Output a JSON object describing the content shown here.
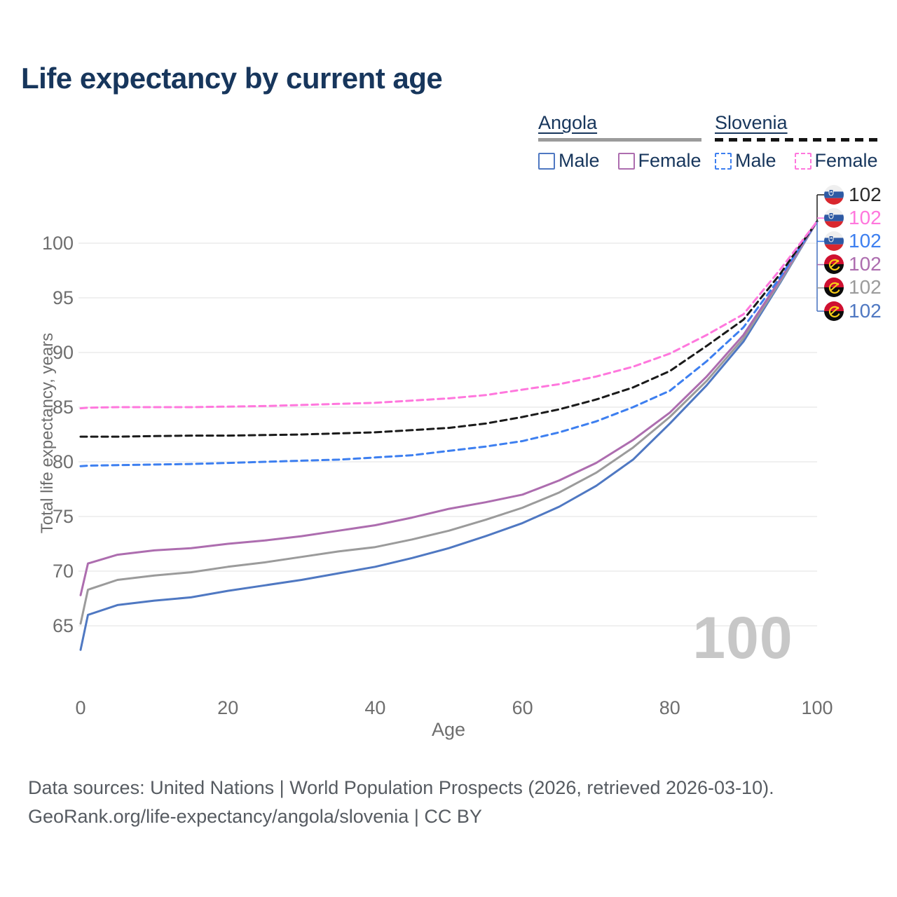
{
  "title": "Life expectancy by current age",
  "legend": {
    "groups": [
      {
        "country": "Angola",
        "line_style": "solid",
        "underline_color": "#9b9b9b",
        "items": [
          {
            "label": "Male",
            "color": "#4f78c2",
            "dashed": false
          },
          {
            "label": "Female",
            "color": "#ad6daf",
            "dashed": false
          }
        ]
      },
      {
        "country": "Slovenia",
        "line_style": "dashed",
        "underline_color": "#141414",
        "items": [
          {
            "label": "Male",
            "color": "#3d7ff0",
            "dashed": true
          },
          {
            "label": "Female",
            "color": "#ff77dd",
            "dashed": true
          }
        ]
      }
    ]
  },
  "watermark": "100",
  "end_labels": [
    {
      "flag": "slovenia",
      "value": "102",
      "color": "#2b2b2b",
      "series": "Slovenia total"
    },
    {
      "flag": "slovenia",
      "value": "102",
      "color": "#ff77dd",
      "series": "Slovenia female"
    },
    {
      "flag": "slovenia",
      "value": "102",
      "color": "#3d7ff0",
      "series": "Slovenia male"
    },
    {
      "flag": "angola",
      "value": "102",
      "color": "#ad6daf",
      "series": "Angola female"
    },
    {
      "flag": "angola",
      "value": "102",
      "color": "#9b9b9b",
      "series": "Angola total"
    },
    {
      "flag": "angola",
      "value": "102",
      "color": "#4f78c2",
      "series": "Angola male"
    }
  ],
  "footer": {
    "line1": "Data sources: United Nations | World Population Prospects (2026, retrieved 2026-03-10).",
    "line2": "GeoRank.org/life-expectancy/angola/slovenia | CC BY"
  },
  "chart_data": {
    "type": "line",
    "title": "Life expectancy by current age",
    "xlabel": "Age",
    "ylabel": "Total life expectancy, years",
    "xlim": [
      0,
      100
    ],
    "ylim": [
      62,
      103
    ],
    "x_ticks": [
      0,
      20,
      40,
      60,
      80,
      100
    ],
    "y_ticks": [
      65,
      70,
      75,
      80,
      85,
      90,
      95,
      100
    ],
    "grid": true,
    "legend_position": "top-right",
    "ages": [
      0,
      1,
      5,
      10,
      15,
      20,
      25,
      30,
      35,
      40,
      45,
      50,
      55,
      60,
      65,
      70,
      75,
      80,
      85,
      90,
      95,
      100
    ],
    "series": [
      {
        "name": "Angola male",
        "country": "Angola",
        "sex": "Male",
        "color": "#4f78c2",
        "dashed": false,
        "values": [
          62.8,
          66.0,
          66.9,
          67.3,
          67.6,
          68.2,
          68.7,
          69.2,
          69.8,
          70.4,
          71.2,
          72.1,
          73.2,
          74.4,
          75.9,
          77.8,
          80.2,
          83.5,
          87.0,
          91.0,
          96.4,
          102
        ]
      },
      {
        "name": "Angola total",
        "country": "Angola",
        "sex": "Total",
        "color": "#9b9b9b",
        "dashed": false,
        "values": [
          65.2,
          68.3,
          69.2,
          69.6,
          69.9,
          70.4,
          70.8,
          71.3,
          71.8,
          72.2,
          72.9,
          73.7,
          74.7,
          75.8,
          77.2,
          79.0,
          81.3,
          84.1,
          87.4,
          91.3,
          96.5,
          102
        ]
      },
      {
        "name": "Angola female",
        "country": "Angola",
        "sex": "Female",
        "color": "#ad6daf",
        "dashed": false,
        "values": [
          67.8,
          70.7,
          71.5,
          71.9,
          72.1,
          72.5,
          72.8,
          73.2,
          73.7,
          74.2,
          74.9,
          75.7,
          76.3,
          77.0,
          78.3,
          79.9,
          82.0,
          84.5,
          87.8,
          91.6,
          96.7,
          102
        ]
      },
      {
        "name": "Slovenia male",
        "country": "Slovenia",
        "sex": "Male",
        "color": "#3d7ff0",
        "dashed": true,
        "values": [
          79.6,
          79.65,
          79.7,
          79.75,
          79.8,
          79.9,
          80.0,
          80.1,
          80.2,
          80.4,
          80.6,
          81.0,
          81.4,
          81.9,
          82.7,
          83.7,
          85.0,
          86.5,
          89.2,
          92.3,
          96.9,
          102
        ]
      },
      {
        "name": "Slovenia total",
        "country": "Slovenia",
        "sex": "Total",
        "color": "#1a1a1a",
        "dashed": true,
        "values": [
          82.3,
          82.3,
          82.3,
          82.35,
          82.4,
          82.4,
          82.45,
          82.5,
          82.6,
          82.7,
          82.9,
          83.1,
          83.5,
          84.1,
          84.8,
          85.7,
          86.8,
          88.3,
          90.6,
          93.0,
          97.2,
          102
        ]
      },
      {
        "name": "Slovenia female",
        "country": "Slovenia",
        "sex": "Female",
        "color": "#ff77dd",
        "dashed": true,
        "values": [
          84.9,
          84.95,
          85.0,
          85.0,
          85.0,
          85.05,
          85.1,
          85.2,
          85.3,
          85.4,
          85.6,
          85.8,
          86.1,
          86.6,
          87.1,
          87.8,
          88.7,
          89.9,
          91.6,
          93.5,
          97.6,
          102
        ]
      }
    ]
  }
}
